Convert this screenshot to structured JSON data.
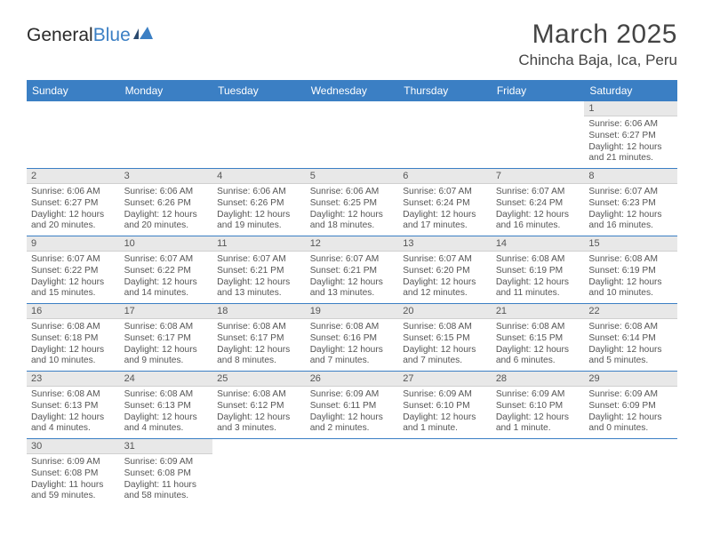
{
  "brand": {
    "part1": "General",
    "part2": "Blue"
  },
  "header": {
    "month_title": "March 2025",
    "location": "Chincha Baja, Ica, Peru"
  },
  "colors": {
    "accent": "#3b7fc4",
    "header_bg": "#e8e8e8",
    "text": "#555555",
    "page_bg": "#ffffff"
  },
  "day_names": [
    "Sunday",
    "Monday",
    "Tuesday",
    "Wednesday",
    "Thursday",
    "Friday",
    "Saturday"
  ],
  "weeks": [
    [
      {
        "n": "",
        "sr": "",
        "ss": "",
        "dl": "",
        "empty": true
      },
      {
        "n": "",
        "sr": "",
        "ss": "",
        "dl": "",
        "empty": true
      },
      {
        "n": "",
        "sr": "",
        "ss": "",
        "dl": "",
        "empty": true
      },
      {
        "n": "",
        "sr": "",
        "ss": "",
        "dl": "",
        "empty": true
      },
      {
        "n": "",
        "sr": "",
        "ss": "",
        "dl": "",
        "empty": true
      },
      {
        "n": "",
        "sr": "",
        "ss": "",
        "dl": "",
        "empty": true
      },
      {
        "n": "1",
        "sr": "Sunrise: 6:06 AM",
        "ss": "Sunset: 6:27 PM",
        "dl": "Daylight: 12 hours and 21 minutes."
      }
    ],
    [
      {
        "n": "2",
        "sr": "Sunrise: 6:06 AM",
        "ss": "Sunset: 6:27 PM",
        "dl": "Daylight: 12 hours and 20 minutes."
      },
      {
        "n": "3",
        "sr": "Sunrise: 6:06 AM",
        "ss": "Sunset: 6:26 PM",
        "dl": "Daylight: 12 hours and 20 minutes."
      },
      {
        "n": "4",
        "sr": "Sunrise: 6:06 AM",
        "ss": "Sunset: 6:26 PM",
        "dl": "Daylight: 12 hours and 19 minutes."
      },
      {
        "n": "5",
        "sr": "Sunrise: 6:06 AM",
        "ss": "Sunset: 6:25 PM",
        "dl": "Daylight: 12 hours and 18 minutes."
      },
      {
        "n": "6",
        "sr": "Sunrise: 6:07 AM",
        "ss": "Sunset: 6:24 PM",
        "dl": "Daylight: 12 hours and 17 minutes."
      },
      {
        "n": "7",
        "sr": "Sunrise: 6:07 AM",
        "ss": "Sunset: 6:24 PM",
        "dl": "Daylight: 12 hours and 16 minutes."
      },
      {
        "n": "8",
        "sr": "Sunrise: 6:07 AM",
        "ss": "Sunset: 6:23 PM",
        "dl": "Daylight: 12 hours and 16 minutes."
      }
    ],
    [
      {
        "n": "9",
        "sr": "Sunrise: 6:07 AM",
        "ss": "Sunset: 6:22 PM",
        "dl": "Daylight: 12 hours and 15 minutes."
      },
      {
        "n": "10",
        "sr": "Sunrise: 6:07 AM",
        "ss": "Sunset: 6:22 PM",
        "dl": "Daylight: 12 hours and 14 minutes."
      },
      {
        "n": "11",
        "sr": "Sunrise: 6:07 AM",
        "ss": "Sunset: 6:21 PM",
        "dl": "Daylight: 12 hours and 13 minutes."
      },
      {
        "n": "12",
        "sr": "Sunrise: 6:07 AM",
        "ss": "Sunset: 6:21 PM",
        "dl": "Daylight: 12 hours and 13 minutes."
      },
      {
        "n": "13",
        "sr": "Sunrise: 6:07 AM",
        "ss": "Sunset: 6:20 PM",
        "dl": "Daylight: 12 hours and 12 minutes."
      },
      {
        "n": "14",
        "sr": "Sunrise: 6:08 AM",
        "ss": "Sunset: 6:19 PM",
        "dl": "Daylight: 12 hours and 11 minutes."
      },
      {
        "n": "15",
        "sr": "Sunrise: 6:08 AM",
        "ss": "Sunset: 6:19 PM",
        "dl": "Daylight: 12 hours and 10 minutes."
      }
    ],
    [
      {
        "n": "16",
        "sr": "Sunrise: 6:08 AM",
        "ss": "Sunset: 6:18 PM",
        "dl": "Daylight: 12 hours and 10 minutes."
      },
      {
        "n": "17",
        "sr": "Sunrise: 6:08 AM",
        "ss": "Sunset: 6:17 PM",
        "dl": "Daylight: 12 hours and 9 minutes."
      },
      {
        "n": "18",
        "sr": "Sunrise: 6:08 AM",
        "ss": "Sunset: 6:17 PM",
        "dl": "Daylight: 12 hours and 8 minutes."
      },
      {
        "n": "19",
        "sr": "Sunrise: 6:08 AM",
        "ss": "Sunset: 6:16 PM",
        "dl": "Daylight: 12 hours and 7 minutes."
      },
      {
        "n": "20",
        "sr": "Sunrise: 6:08 AM",
        "ss": "Sunset: 6:15 PM",
        "dl": "Daylight: 12 hours and 7 minutes."
      },
      {
        "n": "21",
        "sr": "Sunrise: 6:08 AM",
        "ss": "Sunset: 6:15 PM",
        "dl": "Daylight: 12 hours and 6 minutes."
      },
      {
        "n": "22",
        "sr": "Sunrise: 6:08 AM",
        "ss": "Sunset: 6:14 PM",
        "dl": "Daylight: 12 hours and 5 minutes."
      }
    ],
    [
      {
        "n": "23",
        "sr": "Sunrise: 6:08 AM",
        "ss": "Sunset: 6:13 PM",
        "dl": "Daylight: 12 hours and 4 minutes."
      },
      {
        "n": "24",
        "sr": "Sunrise: 6:08 AM",
        "ss": "Sunset: 6:13 PM",
        "dl": "Daylight: 12 hours and 4 minutes."
      },
      {
        "n": "25",
        "sr": "Sunrise: 6:08 AM",
        "ss": "Sunset: 6:12 PM",
        "dl": "Daylight: 12 hours and 3 minutes."
      },
      {
        "n": "26",
        "sr": "Sunrise: 6:09 AM",
        "ss": "Sunset: 6:11 PM",
        "dl": "Daylight: 12 hours and 2 minutes."
      },
      {
        "n": "27",
        "sr": "Sunrise: 6:09 AM",
        "ss": "Sunset: 6:10 PM",
        "dl": "Daylight: 12 hours and 1 minute."
      },
      {
        "n": "28",
        "sr": "Sunrise: 6:09 AM",
        "ss": "Sunset: 6:10 PM",
        "dl": "Daylight: 12 hours and 1 minute."
      },
      {
        "n": "29",
        "sr": "Sunrise: 6:09 AM",
        "ss": "Sunset: 6:09 PM",
        "dl": "Daylight: 12 hours and 0 minutes."
      }
    ],
    [
      {
        "n": "30",
        "sr": "Sunrise: 6:09 AM",
        "ss": "Sunset: 6:08 PM",
        "dl": "Daylight: 11 hours and 59 minutes."
      },
      {
        "n": "31",
        "sr": "Sunrise: 6:09 AM",
        "ss": "Sunset: 6:08 PM",
        "dl": "Daylight: 11 hours and 58 minutes."
      },
      {
        "n": "",
        "sr": "",
        "ss": "",
        "dl": "",
        "empty": true
      },
      {
        "n": "",
        "sr": "",
        "ss": "",
        "dl": "",
        "empty": true
      },
      {
        "n": "",
        "sr": "",
        "ss": "",
        "dl": "",
        "empty": true
      },
      {
        "n": "",
        "sr": "",
        "ss": "",
        "dl": "",
        "empty": true
      },
      {
        "n": "",
        "sr": "",
        "ss": "",
        "dl": "",
        "empty": true
      }
    ]
  ]
}
